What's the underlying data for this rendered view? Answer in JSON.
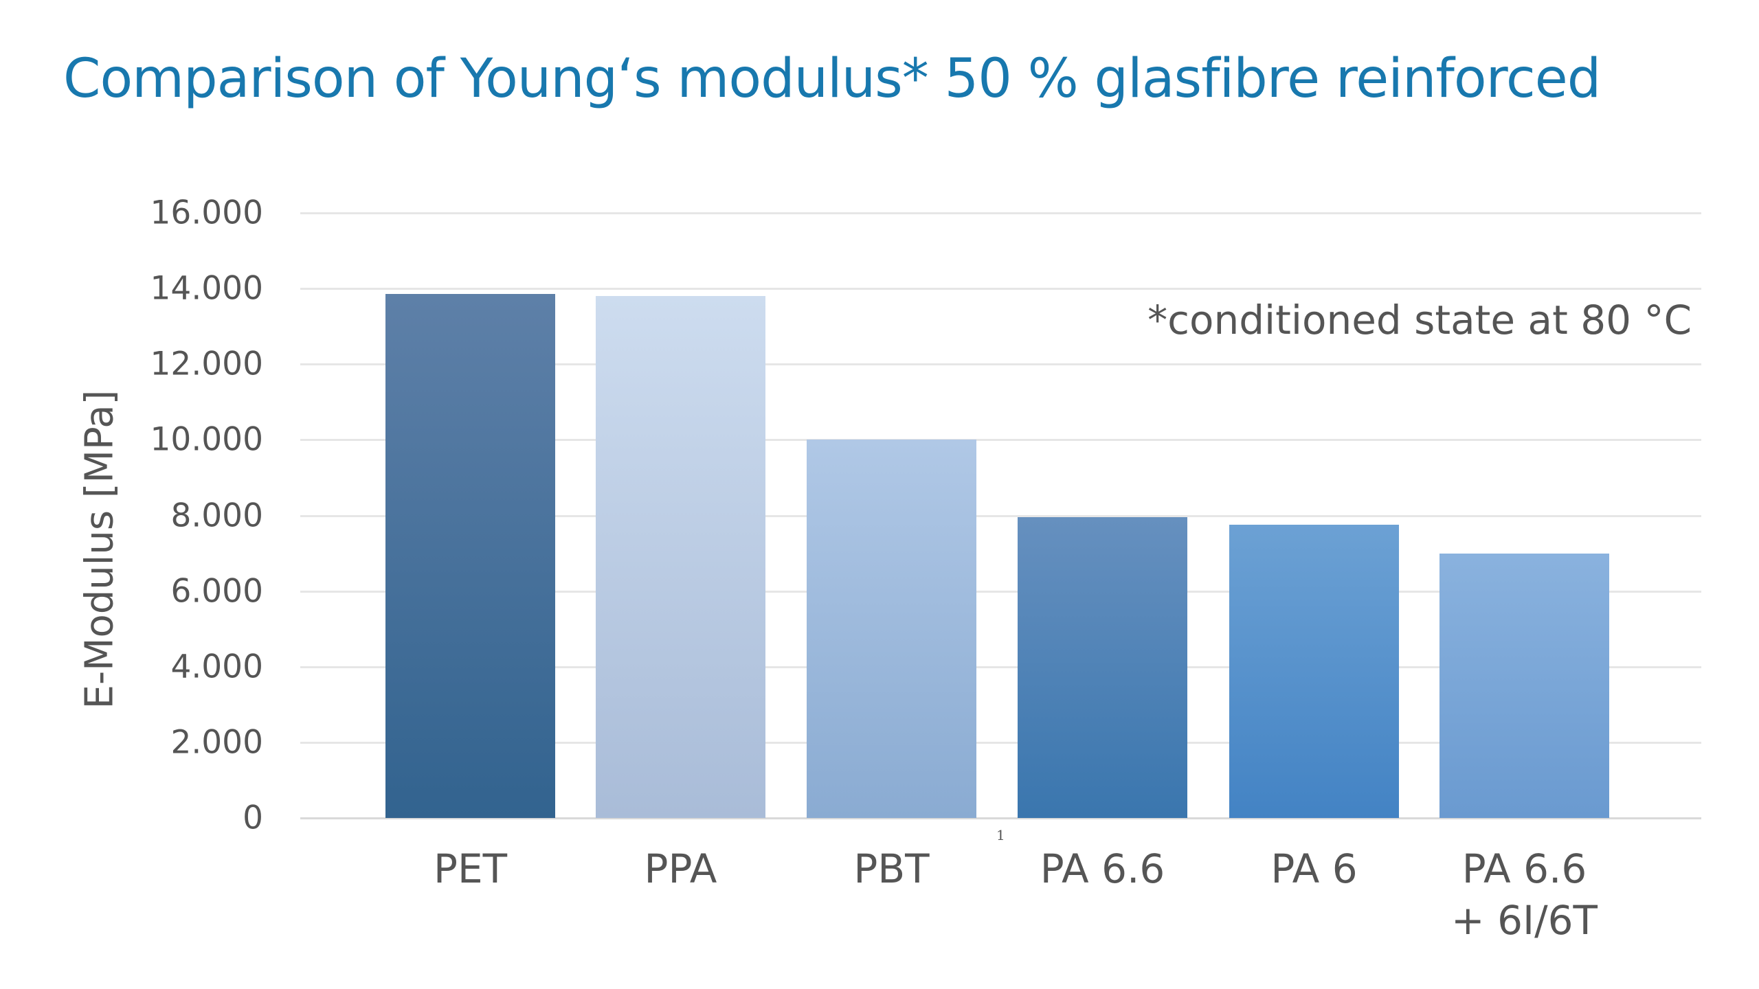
{
  "title": "Comparison of Young‘s modulus* 50 % glasfibre reinforced",
  "annotation": "*conditioned state at 80 °C",
  "footnote_mark": "1",
  "y_axis_label": "E-Modulus [MPa]",
  "colors": {
    "title": "#1878ae",
    "text": "#555555",
    "grid": "#e6e6e6"
  },
  "chart_data": {
    "type": "bar",
    "title": "Comparison of Young‘s modulus* 50 % glasfibre reinforced",
    "xlabel": "",
    "ylabel": "E-Modulus [MPa]",
    "categories": [
      "PET",
      "PPA",
      "PBT",
      "PA 6.6",
      "PA 6",
      "PA 6.6\n+ 6I/6T"
    ],
    "values": [
      13850,
      13800,
      10000,
      7950,
      7750,
      7000
    ],
    "ylim": [
      0,
      16000
    ],
    "yticks": [
      0,
      2000,
      4000,
      6000,
      8000,
      10000,
      12000,
      14000,
      16000
    ],
    "ytick_labels": [
      "0",
      "2.000",
      "4.000",
      "6.000",
      "8.000",
      "10.000",
      "12.000",
      "14.000",
      "16.000"
    ],
    "grid": true,
    "legend": null,
    "annotations": [
      "*conditioned state at 80 °C"
    ],
    "bar_gradients": [
      {
        "top": "#5e80a8",
        "bottom": "#32638f"
      },
      {
        "top": "#cddcef",
        "bottom": "#a9bcd8"
      },
      {
        "top": "#b0c8e6",
        "bottom": "#8aabd2"
      },
      {
        "top": "#6690bf",
        "bottom": "#3a76ae"
      },
      {
        "top": "#6ca1d4",
        "bottom": "#4383c4"
      },
      {
        "top": "#8ab2de",
        "bottom": "#6a9ad0"
      }
    ]
  }
}
